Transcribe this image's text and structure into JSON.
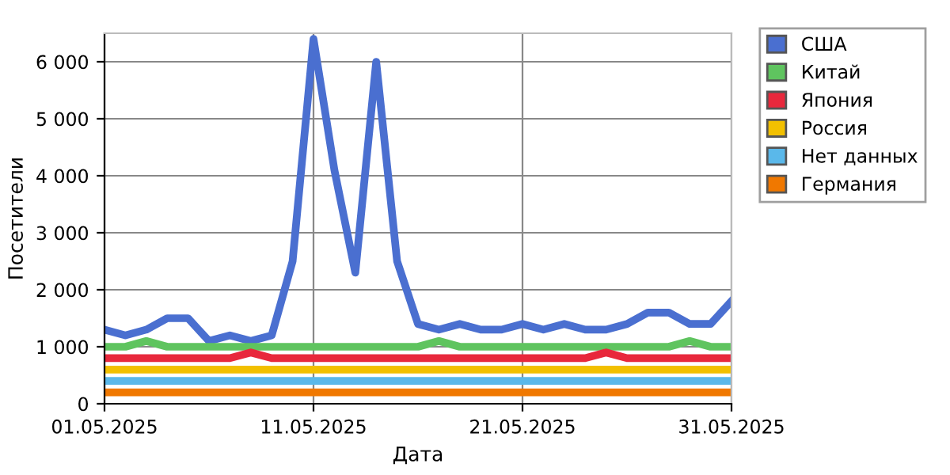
{
  "chart_data": {
    "type": "line",
    "xlabel": "Дата",
    "ylabel": "Посетители",
    "x": [
      "2025-05-01",
      "2025-05-02",
      "2025-05-03",
      "2025-05-04",
      "2025-05-05",
      "2025-05-06",
      "2025-05-07",
      "2025-05-08",
      "2025-05-09",
      "2025-05-10",
      "2025-05-11",
      "2025-05-12",
      "2025-05-13",
      "2025-05-14",
      "2025-05-15",
      "2025-05-16",
      "2025-05-17",
      "2025-05-18",
      "2025-05-19",
      "2025-05-20",
      "2025-05-21",
      "2025-05-22",
      "2025-05-23",
      "2025-05-24",
      "2025-05-25",
      "2025-05-26",
      "2025-05-27",
      "2025-05-28",
      "2025-05-29",
      "2025-05-30",
      "2025-05-31"
    ],
    "series": [
      {
        "name": "США",
        "color": "#4a6fd0",
        "values": [
          1300,
          1200,
          1300,
          1500,
          1500,
          1100,
          1200,
          1100,
          1200,
          2500,
          6400,
          4100,
          2300,
          6000,
          2500,
          1400,
          1300,
          1400,
          1300,
          1300,
          1400,
          1300,
          1400,
          1300,
          1300,
          1400,
          1600,
          1600,
          1400,
          1400,
          1800
        ]
      },
      {
        "name": "Китай",
        "color": "#5fc45f",
        "values": [
          1000,
          1000,
          1100,
          1000,
          1000,
          1000,
          1000,
          1000,
          1000,
          1000,
          1000,
          1000,
          1000,
          1000,
          1000,
          1000,
          1100,
          1000,
          1000,
          1000,
          1000,
          1000,
          1000,
          1000,
          1000,
          1000,
          1000,
          1000,
          1100,
          1000,
          1000
        ]
      },
      {
        "name": "Япония",
        "color": "#e8283c",
        "values": [
          800,
          800,
          800,
          800,
          800,
          800,
          800,
          900,
          800,
          800,
          800,
          800,
          800,
          800,
          800,
          800,
          800,
          800,
          800,
          800,
          800,
          800,
          800,
          800,
          900,
          800,
          800,
          800,
          800,
          800,
          800
        ]
      },
      {
        "name": "Россия",
        "color": "#f2c000",
        "values": [
          600,
          600,
          600,
          600,
          600,
          600,
          600,
          600,
          600,
          600,
          600,
          600,
          600,
          600,
          600,
          600,
          600,
          600,
          600,
          600,
          600,
          600,
          600,
          600,
          600,
          600,
          600,
          600,
          600,
          600,
          600
        ]
      },
      {
        "name": "Нет данных",
        "color": "#5ab8ea",
        "values": [
          400,
          400,
          400,
          400,
          400,
          400,
          400,
          400,
          400,
          400,
          400,
          400,
          400,
          400,
          400,
          400,
          400,
          400,
          400,
          400,
          400,
          400,
          400,
          400,
          400,
          400,
          400,
          400,
          400,
          400,
          400
        ]
      },
      {
        "name": "Германия",
        "color": "#f07800",
        "values": [
          200,
          200,
          200,
          200,
          200,
          200,
          200,
          200,
          200,
          200,
          200,
          200,
          200,
          200,
          200,
          200,
          200,
          200,
          200,
          200,
          200,
          200,
          200,
          200,
          200,
          200,
          200,
          200,
          200,
          200,
          200
        ]
      }
    ],
    "xlim": [
      "2025-05-01",
      "2025-05-31"
    ],
    "xticks": [
      {
        "value": "2025-05-01",
        "label": "01.05.2025"
      },
      {
        "value": "2025-05-11",
        "label": "11.05.2025"
      },
      {
        "value": "2025-05-21",
        "label": "21.05.2025"
      },
      {
        "value": "2025-05-31",
        "label": "31.05.2025"
      }
    ],
    "ylim": [
      0,
      6500
    ],
    "yticks": [
      0,
      {
        "value": 1000,
        "label": "1 000"
      },
      {
        "value": 2000,
        "label": "2 000"
      },
      {
        "value": 3000,
        "label": "3 000"
      },
      {
        "value": 4000,
        "label": "4 000"
      },
      {
        "value": 5000,
        "label": "5 000"
      },
      {
        "value": 6000,
        "label": "6 000"
      }
    ],
    "grid": true,
    "legend": "right",
    "marker": "none",
    "line_style": "solid"
  }
}
